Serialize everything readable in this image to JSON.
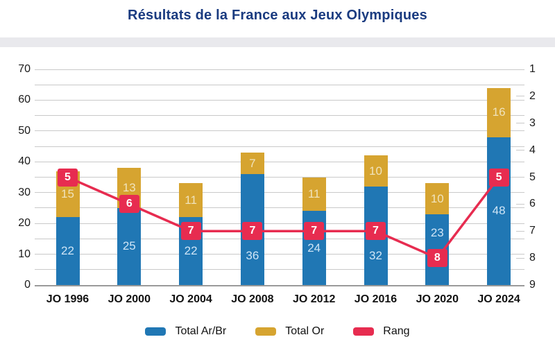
{
  "header": {
    "title": "Résultats de la France aux Jeux Olympiques",
    "title_color": "#1A3B80"
  },
  "chart_data": {
    "type": "bar",
    "subtype": "stacked-bar-with-line",
    "title": "Résultats de la France aux Jeux Olympiques",
    "categories": [
      "JO 1996",
      "JO 2000",
      "JO 2004",
      "JO 2008",
      "JO 2012",
      "JO 2016",
      "JO 2020",
      "JO 2024"
    ],
    "series": [
      {
        "name": "Total Ar/Br",
        "type": "bar",
        "stacked": true,
        "axis": "left",
        "color": "#2077B4",
        "label_color": "#CFE5F6",
        "values": [
          22,
          25,
          22,
          36,
          24,
          32,
          23,
          48
        ]
      },
      {
        "name": "Total Or",
        "type": "bar",
        "stacked": true,
        "axis": "left",
        "color": "#D6A430",
        "label_color": "#F0E3BC",
        "values": [
          15,
          13,
          11,
          7,
          11,
          10,
          10,
          16
        ]
      },
      {
        "name": "Rang",
        "type": "line",
        "axis": "right",
        "color": "#E72C50",
        "label_color": "#FFFFFF",
        "values": [
          5,
          6,
          7,
          7,
          7,
          7,
          8,
          5
        ]
      }
    ],
    "left_axis": {
      "min": 0,
      "max": 70,
      "ticks": [
        0,
        10,
        20,
        30,
        40,
        50,
        60,
        70
      ],
      "grid_interval": 5
    },
    "right_axis": {
      "min": 1,
      "max": 9,
      "ticks": [
        1,
        2,
        3,
        4,
        5,
        6,
        7,
        8,
        9
      ],
      "inverted": true
    },
    "grid": true,
    "legend": {
      "position": "bottom",
      "items": [
        "Total Ar/Br",
        "Total Or",
        "Rang"
      ]
    },
    "colors": {
      "gridline": "#C9C9C9",
      "axis_line": "#9A9A9A",
      "title_band": "#E9E9ED",
      "background": "#FFFFFF"
    }
  }
}
